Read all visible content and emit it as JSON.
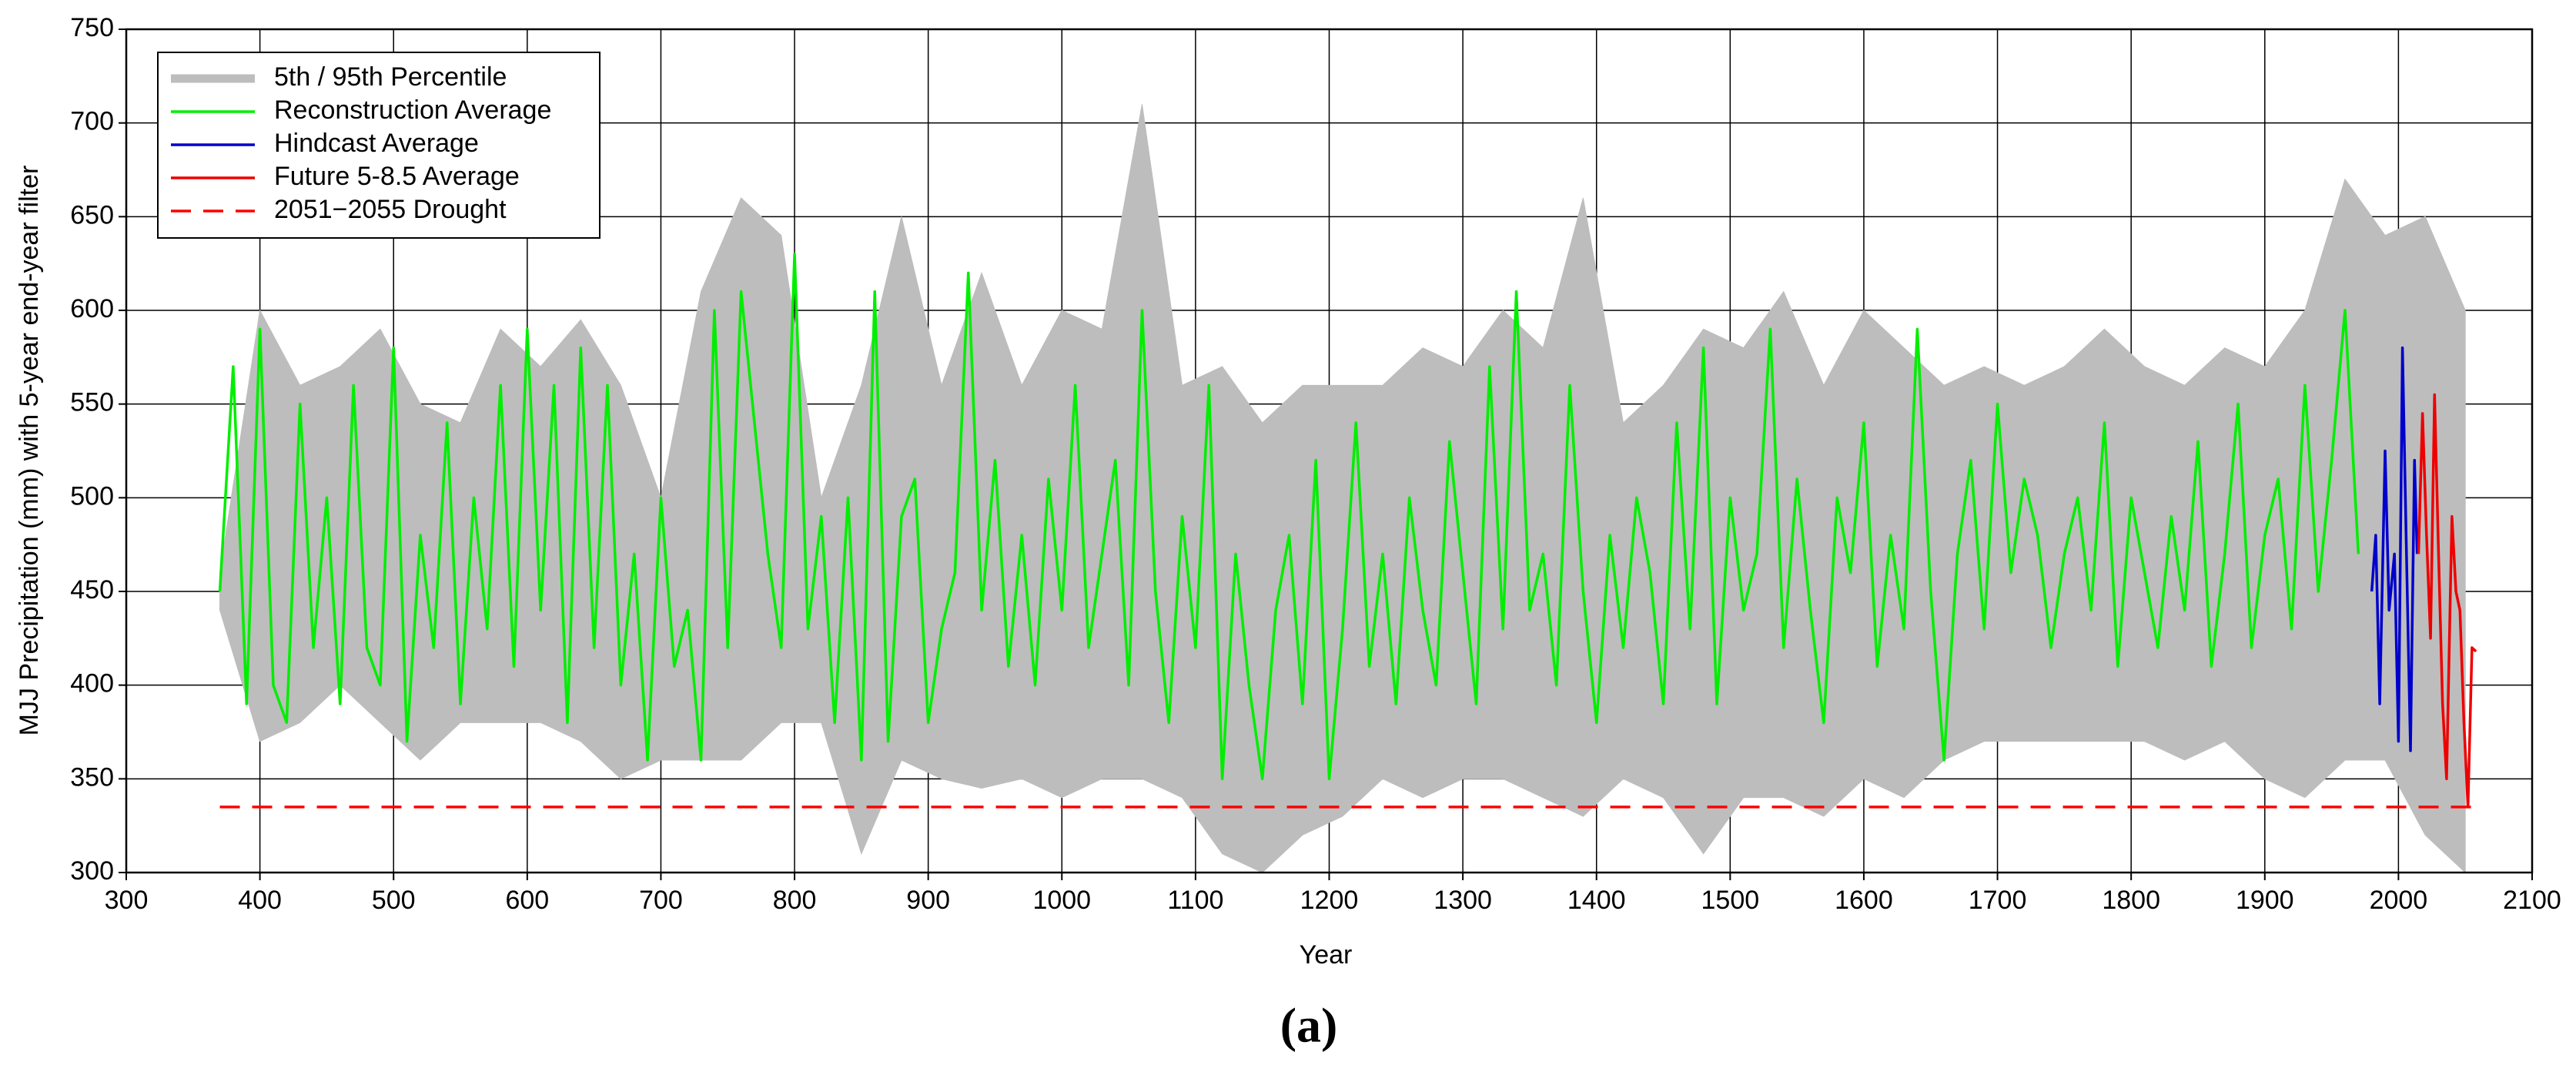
{
  "chart_data": {
    "type": "line",
    "caption": "(a)",
    "x_label": "Year",
    "y_label": "MJJ Precipitation (mm) with 5-year end-year filter",
    "xlim": [
      300,
      2100
    ],
    "xticks": [
      300,
      400,
      500,
      600,
      700,
      800,
      900,
      1000,
      1100,
      1200,
      1300,
      1400,
      1500,
      1600,
      1700,
      1800,
      1900,
      2000,
      2100
    ],
    "ylim": [
      300,
      750
    ],
    "yticks": [
      300,
      350,
      400,
      450,
      500,
      550,
      600,
      650,
      700,
      750
    ],
    "grid": true,
    "legend": "upper left",
    "series": [
      {
        "name": "5th / 95th Percentile",
        "color": "#bdbdbd",
        "band": true,
        "x": [
          370,
          400,
          430,
          460,
          490,
          520,
          550,
          580,
          610,
          640,
          670,
          700,
          730,
          760,
          790,
          820,
          850,
          880,
          910,
          940,
          970,
          1000,
          1030,
          1060,
          1090,
          1120,
          1150,
          1180,
          1210,
          1240,
          1270,
          1300,
          1330,
          1360,
          1390,
          1420,
          1450,
          1480,
          1510,
          1540,
          1570,
          1600,
          1630,
          1660,
          1690,
          1720,
          1750,
          1780,
          1810,
          1840,
          1870,
          1900,
          1930,
          1960,
          1990,
          2020,
          2050
        ],
        "values": [
          460,
          600,
          560,
          570,
          590,
          550,
          540,
          590,
          570,
          595,
          560,
          500,
          610,
          660,
          640,
          500,
          560,
          650,
          560,
          620,
          560,
          600,
          590,
          710,
          560,
          570,
          540,
          560,
          560,
          560,
          580,
          570,
          600,
          580,
          660,
          540,
          560,
          590,
          580,
          610,
          560,
          600,
          580,
          560,
          570,
          560,
          570,
          590,
          570,
          560,
          580,
          570,
          600,
          670,
          640,
          650,
          600
        ],
        "lower": [
          440,
          370,
          380,
          400,
          380,
          360,
          380,
          380,
          380,
          370,
          350,
          360,
          360,
          360,
          380,
          380,
          310,
          360,
          350,
          345,
          350,
          340,
          350,
          350,
          340,
          310,
          300,
          320,
          330,
          350,
          340,
          350,
          350,
          340,
          330,
          350,
          340,
          310,
          340,
          340,
          330,
          350,
          340,
          360,
          370,
          370,
          370,
          370,
          370,
          360,
          370,
          350,
          340,
          360,
          360,
          320,
          300
        ]
      },
      {
        "name": "Reconstruction Average",
        "color": "#00ee00",
        "x": [
          370,
          380,
          390,
          400,
          410,
          420,
          430,
          440,
          450,
          460,
          470,
          480,
          490,
          500,
          510,
          520,
          530,
          540,
          550,
          560,
          570,
          580,
          590,
          600,
          610,
          620,
          630,
          640,
          650,
          660,
          670,
          680,
          690,
          700,
          710,
          720,
          730,
          740,
          750,
          760,
          770,
          780,
          790,
          800,
          810,
          820,
          830,
          840,
          850,
          860,
          870,
          880,
          890,
          900,
          910,
          920,
          930,
          940,
          950,
          960,
          970,
          980,
          990,
          1000,
          1010,
          1020,
          1030,
          1040,
          1050,
          1060,
          1070,
          1080,
          1090,
          1100,
          1110,
          1120,
          1130,
          1140,
          1150,
          1160,
          1170,
          1180,
          1190,
          1200,
          1210,
          1220,
          1230,
          1240,
          1250,
          1260,
          1270,
          1280,
          1290,
          1300,
          1310,
          1320,
          1330,
          1340,
          1350,
          1360,
          1370,
          1380,
          1390,
          1400,
          1410,
          1420,
          1430,
          1440,
          1450,
          1460,
          1470,
          1480,
          1490,
          1500,
          1510,
          1520,
          1530,
          1540,
          1550,
          1560,
          1570,
          1580,
          1590,
          1600,
          1610,
          1620,
          1630,
          1640,
          1650,
          1660,
          1670,
          1680,
          1690,
          1700,
          1710,
          1720,
          1730,
          1740,
          1750,
          1760,
          1770,
          1780,
          1790,
          1800,
          1810,
          1820,
          1830,
          1840,
          1850,
          1860,
          1870,
          1880,
          1890,
          1900,
          1910,
          1920,
          1930,
          1940,
          1950,
          1960,
          1970
        ],
        "values": [
          450,
          570,
          390,
          590,
          400,
          380,
          550,
          420,
          500,
          390,
          560,
          420,
          400,
          580,
          370,
          480,
          420,
          540,
          390,
          500,
          430,
          560,
          410,
          590,
          440,
          560,
          380,
          580,
          420,
          560,
          400,
          470,
          360,
          500,
          410,
          440,
          360,
          600,
          420,
          610,
          540,
          470,
          420,
          630,
          430,
          490,
          380,
          500,
          360,
          610,
          370,
          490,
          510,
          380,
          430,
          460,
          620,
          440,
          520,
          410,
          480,
          400,
          510,
          440,
          560,
          420,
          470,
          520,
          400,
          600,
          450,
          380,
          490,
          420,
          560,
          350,
          470,
          400,
          350,
          440,
          480,
          390,
          520,
          350,
          430,
          540,
          410,
          470,
          390,
          500,
          440,
          400,
          530,
          460,
          390,
          570,
          430,
          610,
          440,
          470,
          400,
          560,
          450,
          380,
          480,
          420,
          500,
          460,
          390,
          540,
          430,
          580,
          390,
          500,
          440,
          470,
          590,
          420,
          510,
          440,
          380,
          500,
          460,
          540,
          410,
          480,
          430,
          590,
          450,
          360,
          470,
          520,
          430,
          550,
          460,
          510,
          480,
          420,
          470,
          500,
          440,
          540,
          410,
          500,
          460,
          420,
          490,
          440,
          530,
          410,
          470,
          550,
          420,
          480,
          510,
          430,
          560,
          450,
          520,
          600,
          470
        ]
      },
      {
        "name": "Hindcast Average",
        "color": "#0000cc",
        "x": [
          1980,
          1983,
          1986,
          1990,
          1993,
          1997,
          2000,
          2003,
          2006,
          2009,
          2012,
          2014
        ],
        "values": [
          450,
          480,
          390,
          525,
          440,
          470,
          370,
          580,
          470,
          365,
          520,
          470
        ]
      },
      {
        "name": "Future 5-8.5 Average",
        "color": "#ee0000",
        "x": [
          2015,
          2018,
          2021,
          2024,
          2027,
          2030,
          2033,
          2036,
          2040,
          2043,
          2046,
          2049,
          2052,
          2055,
          2058
        ],
        "values": [
          470,
          545,
          480,
          425,
          555,
          470,
          390,
          350,
          490,
          450,
          440,
          380,
          335,
          420,
          418
        ]
      },
      {
        "name": "2051−2055 Drought",
        "color": "#ff0000",
        "dash": true,
        "x": [
          370,
          2058
        ],
        "values": [
          335,
          335
        ]
      }
    ]
  }
}
